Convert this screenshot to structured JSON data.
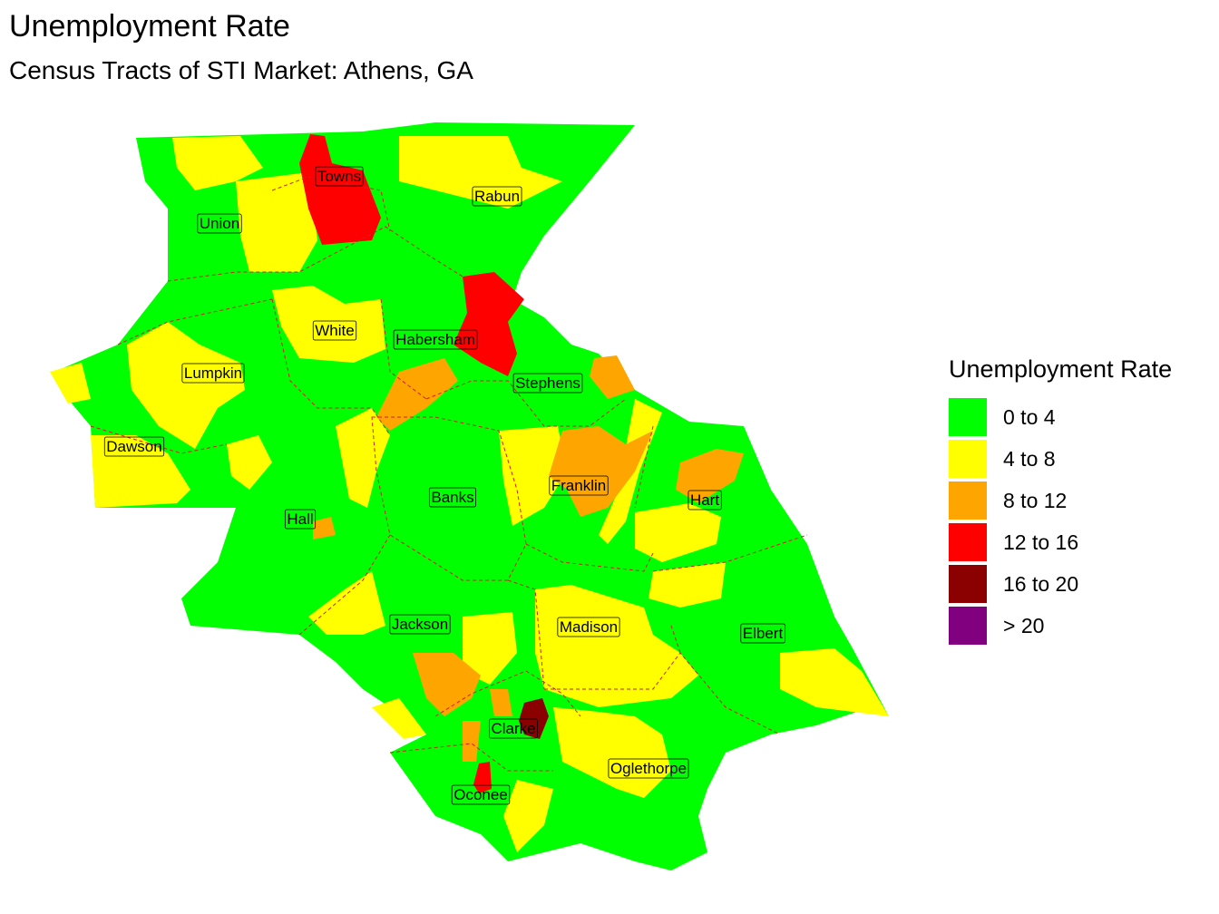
{
  "title": "Unemployment Rate",
  "subtitle": "Census Tracts of STI Market: Athens, GA",
  "legend": {
    "title": "Unemployment Rate",
    "items": [
      {
        "label": "0 to 4",
        "color": "#00FF00"
      },
      {
        "label": "4 to 8",
        "color": "#FFFF00"
      },
      {
        "label": "8 to 12",
        "color": "#FFA500"
      },
      {
        "label": "12 to 16",
        "color": "#FF0000"
      },
      {
        "label": "16 to 20",
        "color": "#8B0000"
      },
      {
        "label": "> 20",
        "color": "#800080"
      }
    ]
  },
  "counties": [
    {
      "name": "Towns"
    },
    {
      "name": "Rabun"
    },
    {
      "name": "Union"
    },
    {
      "name": "White"
    },
    {
      "name": "Habersham"
    },
    {
      "name": "Lumpkin"
    },
    {
      "name": "Stephens"
    },
    {
      "name": "Dawson"
    },
    {
      "name": "Banks"
    },
    {
      "name": "Franklin"
    },
    {
      "name": "Hart"
    },
    {
      "name": "Hall"
    },
    {
      "name": "Jackson"
    },
    {
      "name": "Madison"
    },
    {
      "name": "Elbert"
    },
    {
      "name": "Clarke"
    },
    {
      "name": "Oglethorpe"
    },
    {
      "name": "Oconee"
    }
  ]
}
